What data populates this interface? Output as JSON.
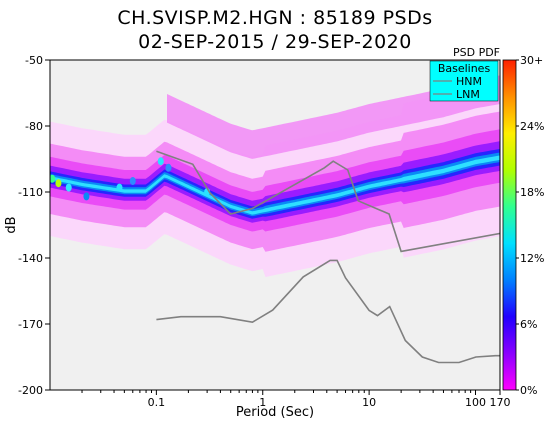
{
  "title_line1": "CH.SVISP.M2.HGN : 85189 PSDs",
  "title_line2": "02-SEP-2015 / 29-SEP-2020",
  "chart_data": {
    "type": "heatmap",
    "xlabel": "Period (Sec)",
    "ylabel": "dB",
    "x_scale": "log",
    "xlim": [
      0.01,
      170
    ],
    "ylim": [
      -200,
      -50
    ],
    "x_ticks": [
      {
        "value": 0.1,
        "label": "0.1"
      },
      {
        "value": 1,
        "label": "1"
      },
      {
        "value": 10,
        "label": "10"
      },
      {
        "value": 100,
        "label": "100"
      },
      {
        "value": 170,
        "label": "170"
      }
    ],
    "y_ticks": [
      {
        "value": -50,
        "label": "-50"
      },
      {
        "value": -80,
        "label": "-80"
      },
      {
        "value": -110,
        "label": "-110"
      },
      {
        "value": -140,
        "label": "-140"
      },
      {
        "value": -170,
        "label": "-170"
      },
      {
        "value": -200,
        "label": "-200"
      }
    ],
    "colorbar": {
      "label": "PSD PDF",
      "ticks": [
        "30+",
        "24%",
        "18%",
        "12%",
        "6%",
        "0%"
      ],
      "tick_values": [
        30,
        24,
        18,
        12,
        6,
        0
      ],
      "colors": [
        "#ff00ff",
        "#8a00ff",
        "#2000ff",
        "#0080ff",
        "#00e0ff",
        "#30ff90",
        "#b0ff00",
        "#ffee00",
        "#ff9000",
        "#ff2000"
      ]
    },
    "legend": {
      "title": "Baselines",
      "position": "top-right",
      "entries": [
        "HNM",
        "LNM"
      ]
    },
    "nhnm": {
      "x": [
        0.1,
        0.22,
        0.32,
        0.5,
        0.8,
        3.8,
        4.6,
        6.3,
        7.9,
        15.4,
        20,
        354.8
      ],
      "y": [
        -91.5,
        -97.4,
        -110.5,
        -120,
        -117.5,
        -99,
        -96,
        -100,
        -114,
        -120,
        -137,
        -126
      ]
    },
    "nlnm": {
      "x": [
        0.1,
        0.17,
        0.4,
        0.8,
        1.24,
        2.4,
        4.3,
        5.0,
        6.0,
        10.0,
        12.0,
        15.6,
        21.9,
        31.6,
        45.0,
        70.0,
        101.0,
        154.0,
        170.0
      ],
      "y": [
        -168,
        -166.7,
        -166.7,
        -169.2,
        -163.7,
        -148.6,
        -141.1,
        -141.1,
        -149.0,
        -163.8,
        -166.2,
        -162.1,
        -177.5,
        -185.0,
        -187.5,
        -187.5,
        -185.0,
        -184.4,
        -184.4
      ]
    },
    "mode_band": {
      "x": [
        0.01,
        0.02,
        0.05,
        0.08,
        0.12,
        0.2,
        0.3,
        0.5,
        0.8,
        1.0,
        2.0,
        5.0,
        10.0,
        20.0,
        50.0,
        100.0,
        170.0
      ],
      "y": [
        -104,
        -107,
        -110,
        -110,
        -103,
        -108,
        -112,
        -117,
        -120,
        -119,
        -116,
        -112,
        -108,
        -105,
        -101,
        -97,
        -95
      ]
    }
  }
}
